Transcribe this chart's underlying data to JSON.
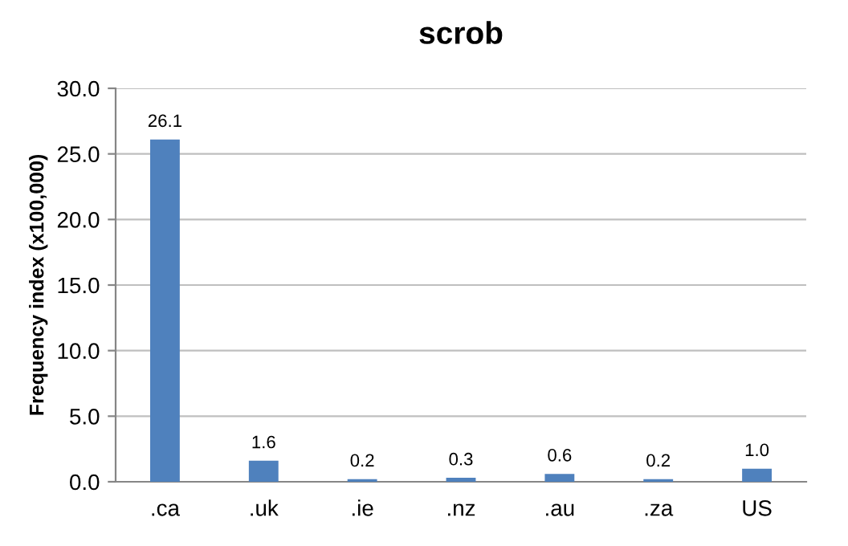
{
  "chart_data": {
    "type": "bar",
    "title": "scrob",
    "ylabel": "Frequency index (x100,000)",
    "categories": [
      ".ca",
      ".uk",
      ".ie",
      ".nz",
      ".au",
      ".za",
      "US"
    ],
    "values": [
      26.1,
      1.6,
      0.2,
      0.3,
      0.6,
      0.2,
      1.0
    ],
    "color": "#4f81bd",
    "value_labels": [
      "26.1",
      "1.6",
      "0.2",
      "0.3",
      "0.6",
      "0.2",
      "1.0"
    ],
    "ylim": [
      0,
      30
    ],
    "yticks": [
      {
        "value": 0,
        "label": "0.0"
      },
      {
        "value": 5,
        "label": "5.0"
      },
      {
        "value": 10,
        "label": "10.0"
      },
      {
        "value": 15,
        "label": "15.0"
      },
      {
        "value": 20,
        "label": "20.0"
      },
      {
        "value": 25,
        "label": "25.0"
      },
      {
        "value": 30,
        "label": "30.0"
      }
    ],
    "grid": "y"
  }
}
